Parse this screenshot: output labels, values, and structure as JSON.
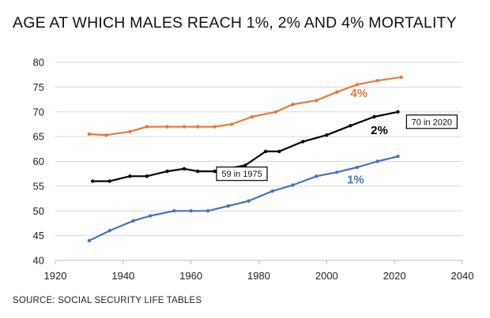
{
  "title": "AGE AT WHICH MALES REACH 1%, 2% AND 4% MORTALITY",
  "source": "SOURCE: SOCIAL SECURITY LIFE TABLES",
  "chart_data": {
    "type": "line",
    "title": "AGE AT WHICH MALES REACH 1%, 2% AND 4% MORTALITY",
    "xlabel": "",
    "ylabel": "",
    "xlim": [
      1920,
      2040
    ],
    "ylim": [
      40,
      80
    ],
    "x_ticks": [
      1920,
      1940,
      1960,
      1980,
      2000,
      2020,
      2040
    ],
    "y_ticks": [
      40,
      45,
      50,
      55,
      60,
      65,
      70,
      75,
      80
    ],
    "grid": {
      "horizontal": true,
      "vertical": false
    },
    "series": [
      {
        "name": "4%",
        "color": "#e8793a",
        "x": [
          1930,
          1935,
          1942,
          1947,
          1953,
          1958,
          1962,
          1967,
          1972,
          1978,
          1985,
          1990,
          1997,
          2003,
          2009,
          2015,
          2022
        ],
        "y": [
          65.5,
          65.3,
          66.0,
          67.0,
          67.0,
          67.0,
          67.0,
          67.0,
          67.5,
          69.0,
          70.0,
          71.5,
          72.3,
          74.0,
          75.5,
          76.3,
          77.0
        ]
      },
      {
        "name": "2%",
        "color": "#000000",
        "x": [
          1931,
          1936,
          1942,
          1947,
          1953,
          1958,
          1962,
          1967,
          1976,
          1982,
          1986,
          1993,
          2000,
          2007,
          2014,
          2021
        ],
        "y": [
          56.0,
          56.0,
          57.0,
          57.0,
          58.0,
          58.5,
          58.0,
          58.0,
          59.2,
          62.0,
          62.0,
          64.0,
          65.3,
          67.2,
          69.0,
          70.0
        ]
      },
      {
        "name": "1%",
        "color": "#4472c4",
        "x": [
          1930,
          1936,
          1943,
          1948,
          1955,
          1960,
          1965,
          1971,
          1977,
          1984,
          1990,
          1997,
          2003,
          2009,
          2015,
          2021
        ],
        "y": [
          44.0,
          46.0,
          48.0,
          49.0,
          50.0,
          50.0,
          50.0,
          51.0,
          52.0,
          54.0,
          55.2,
          57.0,
          57.8,
          58.8,
          60.0,
          61.0
        ]
      }
    ],
    "series_labels": [
      {
        "text": "4%",
        "x": 2007,
        "y": 73,
        "color": "#e8793a"
      },
      {
        "text": "2%",
        "x": 2013,
        "y": 65.5,
        "color": "#000000"
      },
      {
        "text": "1%",
        "x": 2006,
        "y": 55.5,
        "color": "#4472c4"
      }
    ],
    "annotations": [
      {
        "text": "59 in 1975",
        "x": 1975,
        "y": 57.5
      },
      {
        "text": "70 in 2020",
        "x": 2031,
        "y": 68.0
      }
    ]
  }
}
